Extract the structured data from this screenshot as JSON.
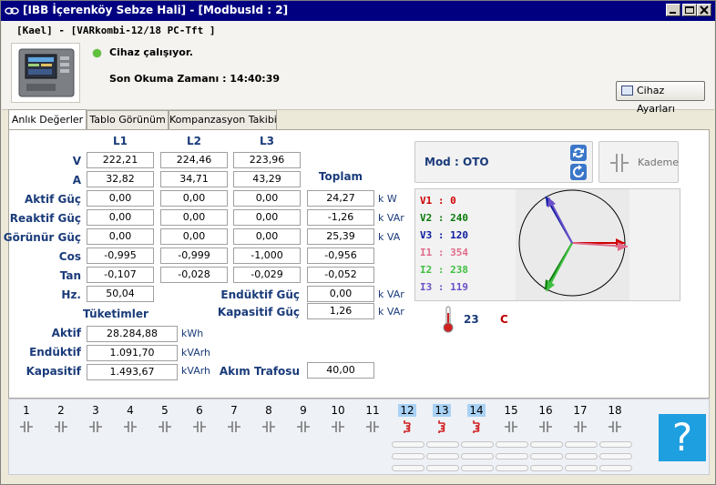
{
  "window": {
    "title": "[IBB İçerenköy Sebze Hali] - [ModbusId : 2]"
  },
  "header": {
    "device_path": "[Kael] - [VARkombi-12/18 PC-Tft ]",
    "status": "Cihaz çalışıyor.",
    "last_read": "Son Okuma Zamanı : 14:40:39",
    "settings_button": "Cihaz Ayarları"
  },
  "tabs": [
    "Anlık Değerler",
    "Tablo Görünüm",
    "Kompanzasyon Takibi"
  ],
  "measurements": {
    "headers": [
      "L1",
      "L2",
      "L3"
    ],
    "total_header": "Toplam",
    "V": {
      "label": "V",
      "values": [
        "222,21",
        "224,46",
        "223,96"
      ]
    },
    "A": {
      "label": "A",
      "values": [
        "32,82",
        "34,71",
        "43,29"
      ]
    },
    "aktif": {
      "label": "Aktif Güç",
      "values": [
        "0,00",
        "0,00",
        "0,00"
      ],
      "total": "24,27",
      "unit": "k W"
    },
    "reaktif": {
      "label": "Reaktif Güç",
      "values": [
        "0,00",
        "0,00",
        "0,00"
      ],
      "total": "-1,26",
      "unit": "k VAr"
    },
    "gorunur": {
      "label": "Görünür Güç",
      "values": [
        "0,00",
        "0,00",
        "0,00"
      ],
      "total": "25,39",
      "unit": "k VA"
    },
    "cos": {
      "label": "Cos",
      "values": [
        "-0,995",
        "-0,999",
        "-1,000"
      ],
      "total": "-0,956"
    },
    "tan": {
      "label": "Tan",
      "values": [
        "-0,107",
        "-0,028",
        "-0,029"
      ],
      "total": "-0,052"
    },
    "hz": {
      "label": "Hz.",
      "value": "50,04"
    },
    "enduktif_guc": {
      "label": "Endüktif Güç",
      "value": "0,00",
      "unit": "k VAr"
    },
    "kapasitif_guc": {
      "label": "Kapasitif Güç",
      "value": "1,26",
      "unit": "k VAr"
    }
  },
  "consumption": {
    "title": "Tüketimler",
    "aktif": {
      "label": "Aktif",
      "value": "28.284,88",
      "unit": "kWh"
    },
    "enduktif": {
      "label": "Endüktif",
      "value": "1.091,70",
      "unit": "kVArh"
    },
    "kapasitif": {
      "label": "Kapasitif",
      "value": "1.493,67",
      "unit": "kVArh"
    },
    "akim_trafosu": {
      "label": "Akım Trafosu",
      "value": "40,00"
    }
  },
  "mode": {
    "label": "Mod :",
    "value": "OTO",
    "kademe_button": "Kademe"
  },
  "phasor": {
    "lines": [
      {
        "text": "V1 : 0",
        "color": "#d00000"
      },
      {
        "text": "V2 : 240",
        "color": "#0a7a0a"
      },
      {
        "text": "V3 : 120",
        "color": "#0a1aa0"
      },
      {
        "text": "I1 : 354",
        "color": "#e06b8a"
      },
      {
        "text": "I2 : 238",
        "color": "#3fbf3f"
      },
      {
        "text": "I3 : 119",
        "color": "#6a4fc9"
      }
    ]
  },
  "temperature": {
    "value": "23",
    "unit": "C"
  },
  "steps": {
    "numbers": [
      "1",
      "2",
      "3",
      "4",
      "5",
      "6",
      "7",
      "8",
      "9",
      "10",
      "11",
      "12",
      "13",
      "14",
      "15",
      "16",
      "17",
      "18"
    ],
    "active": [
      "12",
      "13",
      "14"
    ],
    "help_label": "?"
  }
}
